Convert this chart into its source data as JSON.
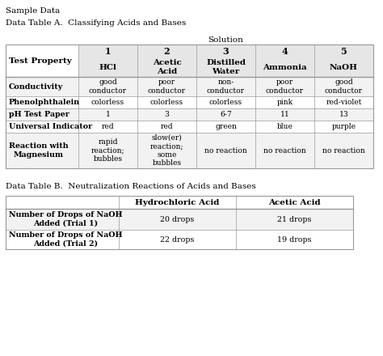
{
  "title1": "Sample Data",
  "title2": "Data Table A.  Classifying Acids and Bases",
  "title3": "Data Table B.  Neutralization Reactions of Acids and Bases",
  "solution_label": "Solution",
  "test_property_label": "Test Property",
  "solution_numbers": [
    "1",
    "2",
    "3",
    "4",
    "5"
  ],
  "solution_names": [
    "HCl",
    "Acetic\nAcid",
    "Distilled\nWater",
    "Ammonia",
    "NaOH"
  ],
  "table_a_rows": [
    {
      "property": "Conductivity",
      "values": [
        "good\nconductor",
        "poor\nconductor",
        "non-\nconductor",
        "poor\nconductor",
        "good\nconductor"
      ]
    },
    {
      "property": "Phenolphthalein",
      "values": [
        "colorless",
        "colorless",
        "colorless",
        "pink",
        "red-violet"
      ]
    },
    {
      "property": "pH Test Paper",
      "values": [
        "1",
        "3",
        "6-7",
        "11",
        "13"
      ]
    },
    {
      "property": "Universal Indicator",
      "values": [
        "red",
        "red",
        "green",
        "blue",
        "purple"
      ]
    },
    {
      "property": "Reaction with\nMagnesium",
      "values": [
        "rapid\nreaction;\nbubbles",
        "slow(er)\nreaction;\nsome\nbubbles",
        "no reaction",
        "no reaction",
        "no reaction"
      ]
    }
  ],
  "table_b_headers": [
    "",
    "Hydrochloric Acid",
    "Acetic Acid"
  ],
  "table_b_rows": [
    {
      "property": "Number of Drops of NaOH\nAdded (Trial 1)",
      "values": [
        "20 drops",
        "21 drops"
      ]
    },
    {
      "property": "Number of Drops of NaOH\nAdded (Trial 2)",
      "values": [
        "22 drops",
        "19 drops"
      ]
    }
  ],
  "bg_color": "#ffffff",
  "header_bg": "#e6e6e6",
  "row_bg_odd": "#f2f2f2",
  "row_bg_even": "#ffffff",
  "text_color": "#000000",
  "border_color": "#999999",
  "title_fontsize": 7.5,
  "header_fontsize": 7.5,
  "cell_fontsize": 6.8
}
